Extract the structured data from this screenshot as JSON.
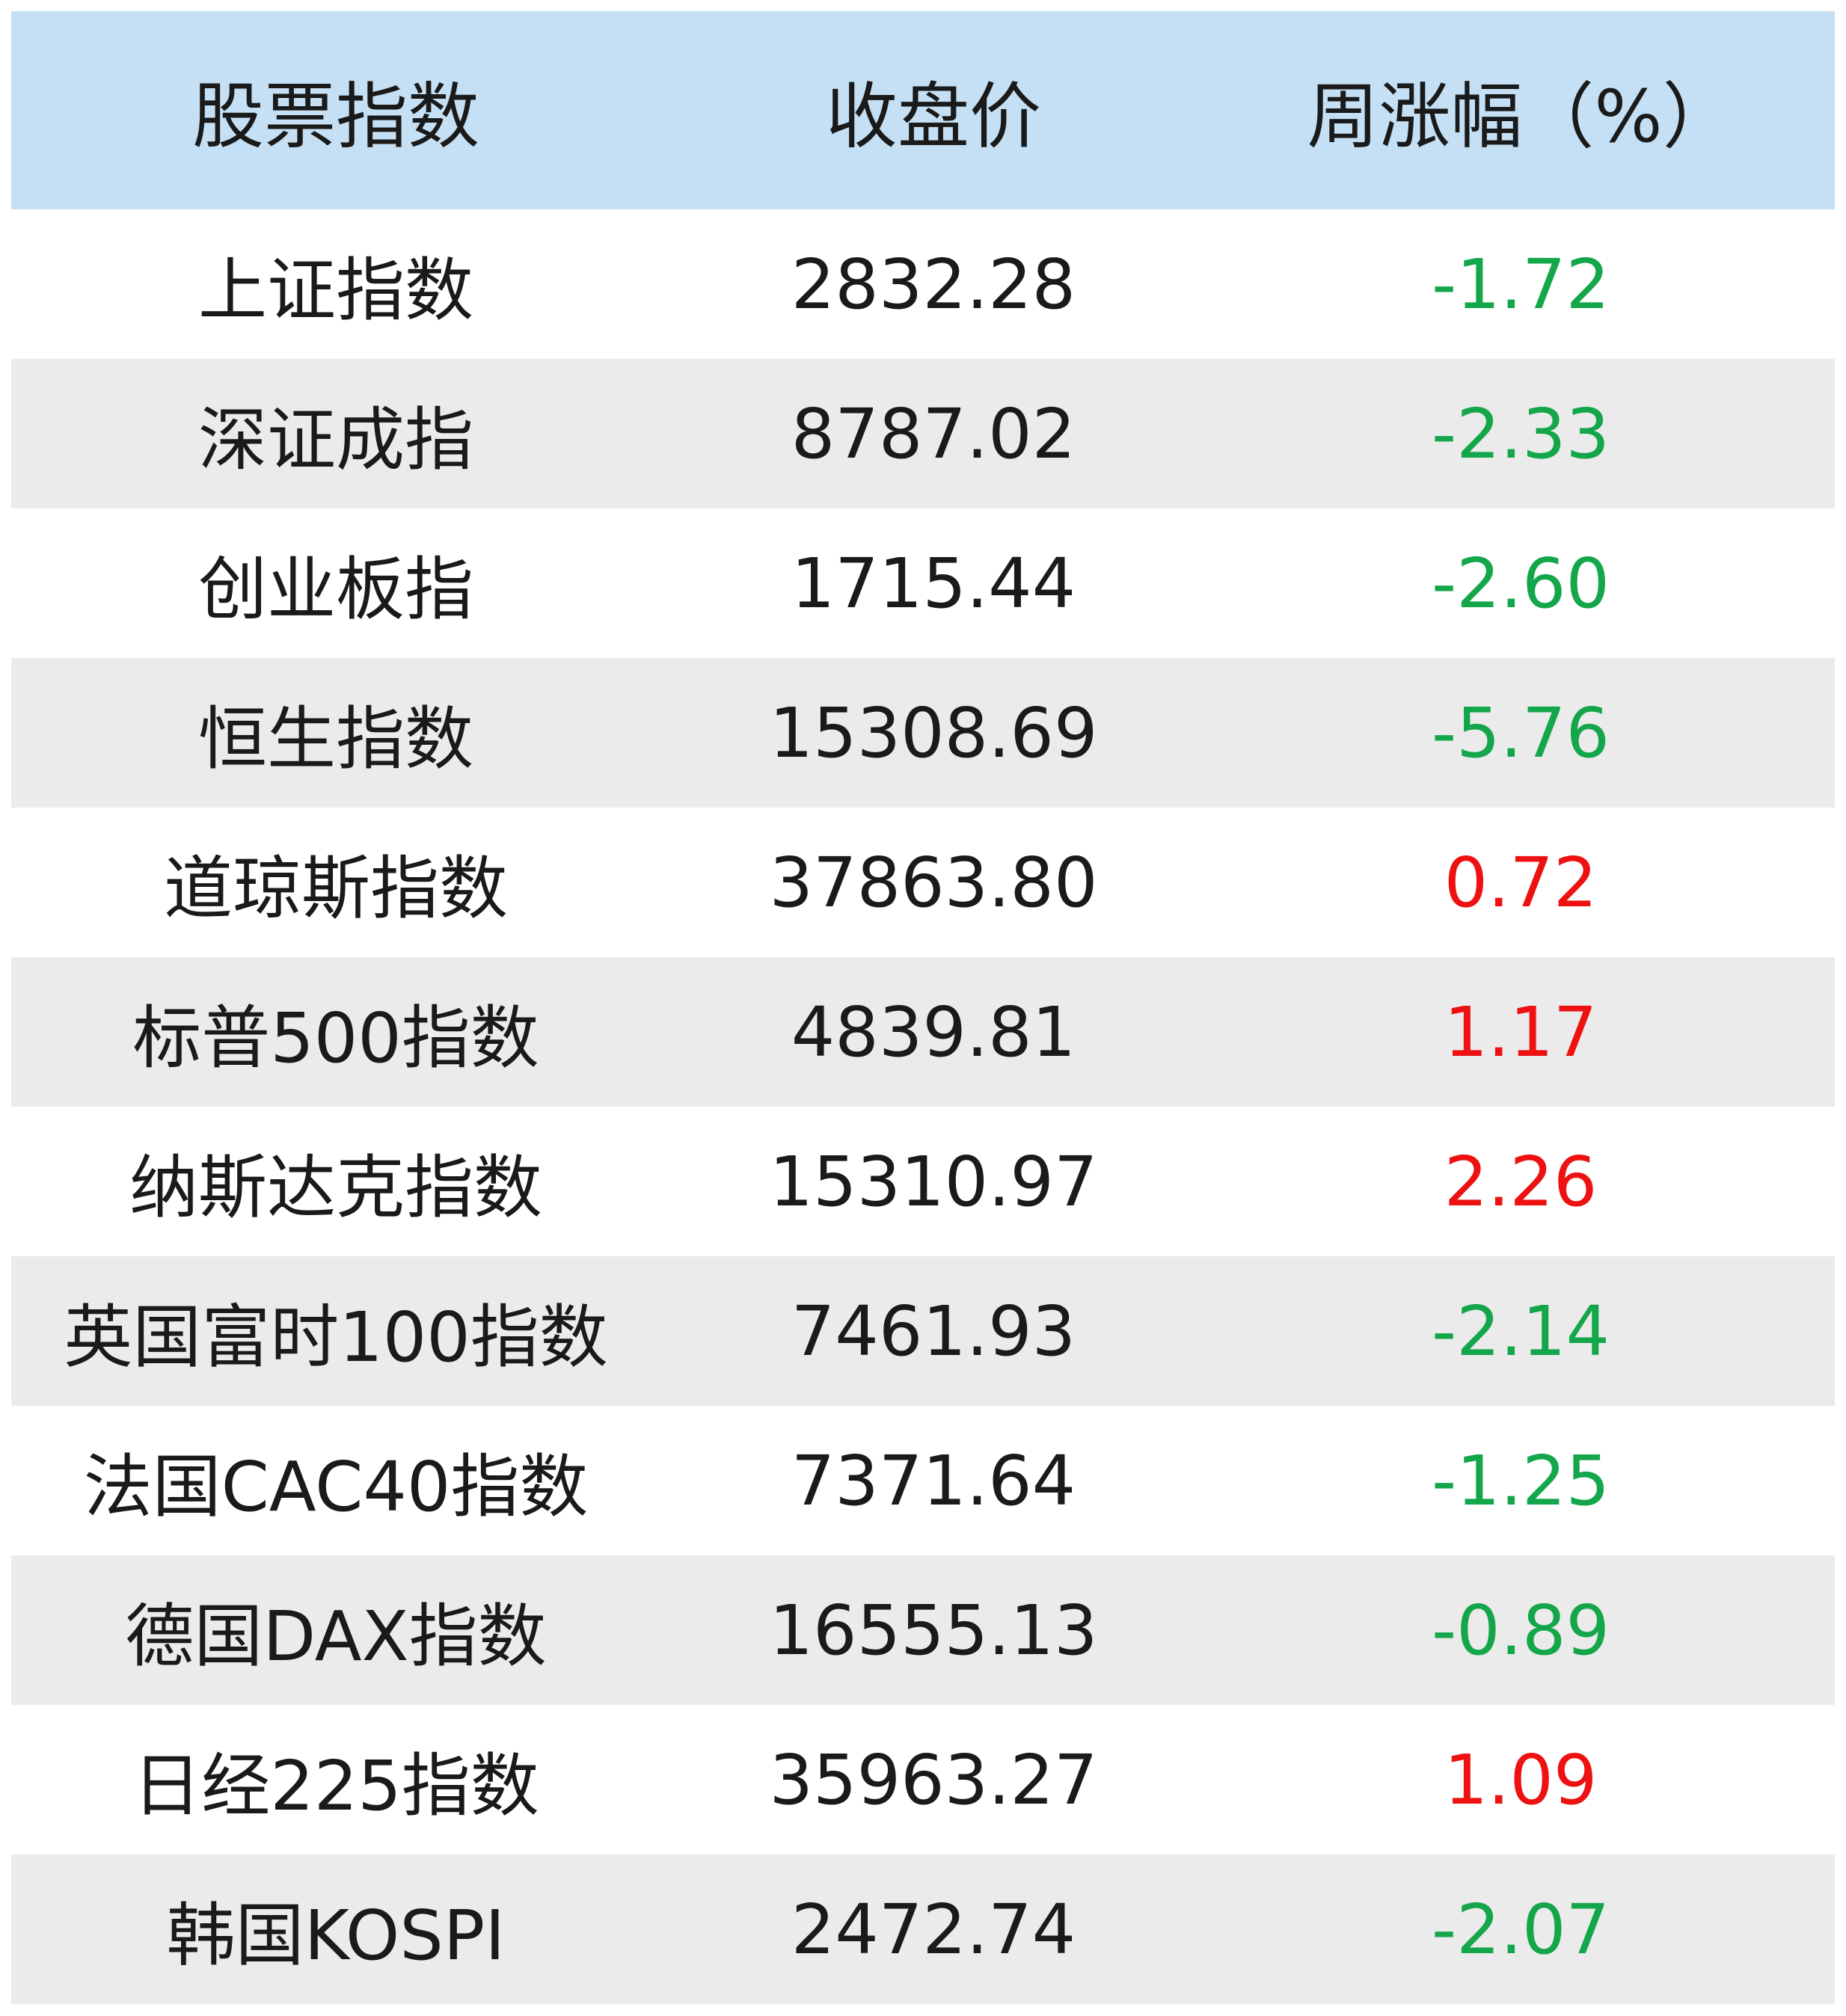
{
  "header": {
    "col_name": "股票指数",
    "col_close": "收盘价",
    "col_change": "周涨幅（%）"
  },
  "colors": {
    "header_bg": "#c5e0f4",
    "alt_row_bg": "#ebebeb",
    "up": "#ee1111",
    "down": "#14a64a"
  },
  "rows": [
    {
      "name": "上证指数",
      "close": "2832.28",
      "change": "-1.72",
      "direction": "down"
    },
    {
      "name": "深证成指",
      "close": "8787.02",
      "change": "-2.33",
      "direction": "down"
    },
    {
      "name": "创业板指",
      "close": "1715.44",
      "change": "-2.60",
      "direction": "down"
    },
    {
      "name": "恒生指数",
      "close": "15308.69",
      "change": "-5.76",
      "direction": "down"
    },
    {
      "name": "道琼斯指数",
      "close": "37863.80",
      "change": "0.72",
      "direction": "up"
    },
    {
      "name": "标普500指数",
      "close": "4839.81",
      "change": "1.17",
      "direction": "up"
    },
    {
      "name": "纳斯达克指数",
      "close": "15310.97",
      "change": "2.26",
      "direction": "up"
    },
    {
      "name": "英国富时100指数",
      "close": "7461.93",
      "change": "-2.14",
      "direction": "down"
    },
    {
      "name": "法国CAC40指数",
      "close": "7371.64",
      "change": "-1.25",
      "direction": "down"
    },
    {
      "name": "德国DAX指数",
      "close": "16555.13",
      "change": "-0.89",
      "direction": "down"
    },
    {
      "name": "日经225指数",
      "close": "35963.27",
      "change": "1.09",
      "direction": "up"
    },
    {
      "name": "韩国KOSPI",
      "close": "2472.74",
      "change": "-2.07",
      "direction": "down"
    }
  ]
}
